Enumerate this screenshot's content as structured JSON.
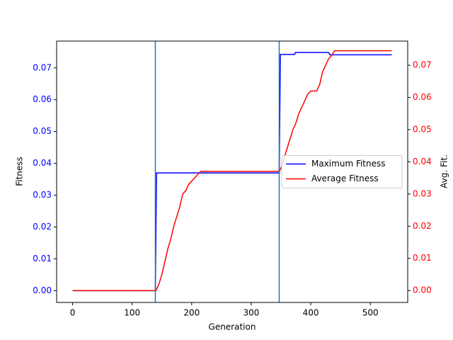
{
  "chart_data": {
    "type": "line",
    "xlabel": "Generation",
    "ylabel": "Fitness",
    "y2label": "Avg. Fit.",
    "xlim": [
      -26.8,
      562.8
    ],
    "xticks": [
      0,
      100,
      200,
      300,
      400,
      500
    ],
    "ylim": [
      -0.0037,
      0.0784
    ],
    "yticks": [
      {
        "value": 0,
        "label": "0.00"
      },
      {
        "value": 0.01,
        "label": "0.01"
      },
      {
        "value": 0.02,
        "label": "0.02"
      },
      {
        "value": 0.03,
        "label": "0.03"
      },
      {
        "value": 0.04,
        "label": "0.04"
      },
      {
        "value": 0.05,
        "label": "0.05"
      },
      {
        "value": 0.06,
        "label": "0.06"
      },
      {
        "value": 0.07,
        "label": "0.07"
      }
    ],
    "y2lim": [
      -0.0037,
      0.0775
    ],
    "y2ticks": [
      {
        "value": 0,
        "label": "0.00"
      },
      {
        "value": 0.01,
        "label": "0.01"
      },
      {
        "value": 0.02,
        "label": "0.02"
      },
      {
        "value": 0.03,
        "label": "0.03"
      },
      {
        "value": 0.04,
        "label": "0.04"
      },
      {
        "value": 0.05,
        "label": "0.05"
      },
      {
        "value": 0.06,
        "label": "0.06"
      },
      {
        "value": 0.07,
        "label": "0.07"
      }
    ],
    "ycolor": "blue",
    "y2color": "red",
    "vlines": [
      139,
      347
    ],
    "vline_color": "#1f77b4",
    "legend": "center right",
    "series": [
      {
        "name": "Maximum Fitness",
        "color": "blue",
        "x": [
          0,
          139,
          141,
          347,
          349,
          373,
          374,
          430,
          432,
          536
        ],
        "values": [
          0,
          0,
          0.037,
          0.037,
          0.0742,
          0.0742,
          0.0748,
          0.0748,
          0.0741,
          0.0741
        ]
      },
      {
        "name": "Average Fitness",
        "color": "red",
        "axis": "y2",
        "x": [
          0,
          140,
          145,
          150,
          155,
          160,
          165,
          170,
          175,
          180,
          185,
          190,
          195,
          200,
          205,
          210,
          215,
          347,
          350,
          355,
          360,
          365,
          370,
          375,
          380,
          385,
          390,
          395,
          400,
          410,
          415,
          420,
          425,
          430,
          435,
          440,
          536
        ],
        "values": [
          0,
          0,
          0.002,
          0.005,
          0.009,
          0.013,
          0.016,
          0.02,
          0.023,
          0.026,
          0.03,
          0.031,
          0.033,
          0.034,
          0.035,
          0.036,
          0.037,
          0.037,
          0.038,
          0.041,
          0.044,
          0.047,
          0.05,
          0.052,
          0.055,
          0.057,
          0.059,
          0.061,
          0.062,
          0.062,
          0.064,
          0.068,
          0.07,
          0.072,
          0.073,
          0.0745,
          0.0745
        ]
      }
    ]
  }
}
